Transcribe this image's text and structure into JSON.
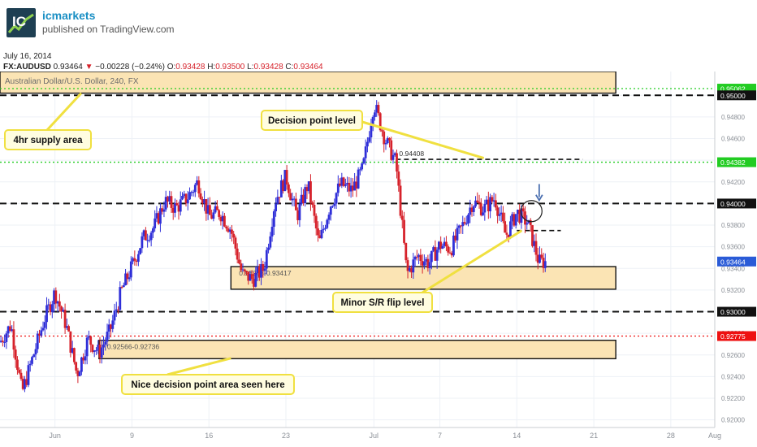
{
  "header": {
    "brand": "icmarkets",
    "published": "published on TradingView.com",
    "date": "July 16, 2014"
  },
  "ticker": {
    "symbol": "FX:AUDUSD",
    "price": "0.93464",
    "arrow": "▼",
    "change": "−0.00228 (−0.24%)",
    "o_label": "O:",
    "o": "0.93428",
    "h_label": "H:",
    "h": "0.93500",
    "l_label": "L:",
    "l": "0.93428",
    "c_label": "C:",
    "c": "0.93464"
  },
  "colors": {
    "up": "#2f2fd8",
    "down": "#d6222b",
    "zone_fill": "#fbe4b4",
    "annotation_fill": "#fffde0",
    "annotation_border": "#f0e040",
    "green_line": "#22cc22",
    "red_line": "#ee1111"
  },
  "chart_data": {
    "type": "candlestick",
    "instrument": "Australian Dollar/U.S. Dollar, 240, FX",
    "y_ticks": [
      0.92,
      0.922,
      0.924,
      0.926,
      0.928,
      0.93,
      0.932,
      0.934,
      0.936,
      0.938,
      0.94,
      0.942,
      0.944,
      0.946,
      0.948,
      0.95
    ],
    "y_tick_labels": [
      "0.92000",
      "0.92200",
      "0.92400",
      "0.92600",
      "0.92800",
      "0.93000",
      "0.93200",
      "0.93400",
      "0.93600",
      "0.93800",
      "0.94000",
      "0.94200",
      "0.94400",
      "0.94600",
      "0.94800",
      "0.95000"
    ],
    "x_ticks": [
      {
        "label": "Jun",
        "date": "2014-06-02"
      },
      {
        "label": "9",
        "date": "2014-06-09"
      },
      {
        "label": "16",
        "date": "2014-06-16"
      },
      {
        "label": "23",
        "date": "2014-06-23"
      },
      {
        "label": "Jul",
        "date": "2014-07-01"
      },
      {
        "label": "7",
        "date": "2014-07-07"
      },
      {
        "label": "14",
        "date": "2014-07-14"
      },
      {
        "label": "21",
        "date": "2014-07-21"
      },
      {
        "label": "28",
        "date": "2014-07-28"
      },
      {
        "label": "Aug",
        "date": "2014-08-01"
      }
    ],
    "x_range": [
      "2014-05-28",
      "2014-08-01"
    ],
    "y_range": [
      0.9193,
      0.9522
    ],
    "price_path": [
      [
        "2014-05-28",
        0.9272
      ],
      [
        "2014-05-29",
        0.9288
      ],
      [
        "2014-05-30",
        0.9225
      ],
      [
        "2014-06-01",
        0.9292
      ],
      [
        "2014-06-02",
        0.9318
      ],
      [
        "2014-06-03",
        0.9288
      ],
      [
        "2014-06-04",
        0.9242
      ],
      [
        "2014-06-05",
        0.9275
      ],
      [
        "2014-06-06",
        0.9262
      ],
      [
        "2014-06-07",
        0.9282
      ],
      [
        "2014-06-08",
        0.9318
      ],
      [
        "2014-06-09",
        0.9342
      ],
      [
        "2014-06-10",
        0.9368
      ],
      [
        "2014-06-11",
        0.9378
      ],
      [
        "2014-06-12",
        0.9402
      ],
      [
        "2014-06-13",
        0.9396
      ],
      [
        "2014-06-14",
        0.9405
      ],
      [
        "2014-06-15",
        0.942
      ],
      [
        "2014-06-16",
        0.9388
      ],
      [
        "2014-06-17",
        0.9392
      ],
      [
        "2014-06-18",
        0.9376
      ],
      [
        "2014-06-19",
        0.9335
      ],
      [
        "2014-06-20",
        0.933
      ],
      [
        "2014-06-21",
        0.934
      ],
      [
        "2014-06-22",
        0.9402
      ],
      [
        "2014-06-23",
        0.9425
      ],
      [
        "2014-06-24",
        0.9388
      ],
      [
        "2014-06-25",
        0.9418
      ],
      [
        "2014-06-26",
        0.9362
      ],
      [
        "2014-06-27",
        0.9398
      ],
      [
        "2014-06-28",
        0.9418
      ],
      [
        "2014-06-29",
        0.9412
      ],
      [
        "2014-06-30",
        0.9432
      ],
      [
        "2014-07-01",
        0.9493
      ],
      [
        "2014-07-02",
        0.946
      ],
      [
        "2014-07-03",
        0.9438
      ],
      [
        "2014-07-04",
        0.9335
      ],
      [
        "2014-07-05",
        0.9352
      ],
      [
        "2014-07-06",
        0.9345
      ],
      [
        "2014-07-07",
        0.9362
      ],
      [
        "2014-07-08",
        0.9358
      ],
      [
        "2014-07-09",
        0.9378
      ],
      [
        "2014-07-10",
        0.9402
      ],
      [
        "2014-07-11",
        0.9395
      ],
      [
        "2014-07-12",
        0.9405
      ],
      [
        "2014-07-13",
        0.937
      ],
      [
        "2014-07-14",
        0.9392
      ],
      [
        "2014-07-15",
        0.9382
      ],
      [
        "2014-07-16",
        0.9346
      ]
    ],
    "horizontal_levels": [
      {
        "price": 0.95062,
        "label": "0.95062",
        "style": "dotted",
        "color": "#22cc22"
      },
      {
        "price": 0.95,
        "label": "0.95000",
        "style": "dashed",
        "color": "#111111"
      },
      {
        "price": 0.94382,
        "label": "0.94382",
        "style": "dotted",
        "color": "#22cc22"
      },
      {
        "price": 0.94,
        "label": "0.94000",
        "style": "dashed",
        "color": "#111111"
      },
      {
        "price": 0.93,
        "label": "0.93000",
        "style": "dashed",
        "color": "#111111"
      },
      {
        "price": 0.92775,
        "label": "0.92775",
        "style": "dotted",
        "color": "#ee1111"
      }
    ],
    "current_price": {
      "price": 0.93464,
      "label": "0.93464"
    },
    "zones": [
      {
        "label": "0.93208-0.93417",
        "from": 0.93208,
        "to": 0.93417,
        "start": "2014-06-18",
        "end": "2014-07-23"
      },
      {
        "label": "0.92566-0.92736",
        "from": 0.92566,
        "to": 0.92736,
        "start": "2014-06-06",
        "end": "2014-07-23"
      },
      {
        "label": "",
        "from": 0.9502,
        "to": 0.9522,
        "start": "2014-05-28",
        "end": "2014-07-23"
      }
    ],
    "segments": [
      {
        "label": "0.94408",
        "price": 0.94408,
        "start": "2014-07-03",
        "end": "2014-07-20"
      },
      {
        "label": "",
        "price": 0.9375,
        "start": "2014-07-14",
        "end": "2014-07-18"
      }
    ],
    "annotations": [
      {
        "text": "4hr supply area"
      },
      {
        "text": "Decision point level"
      },
      {
        "text": "Minor S/R flip level"
      },
      {
        "text": "Nice decision point area seen here"
      }
    ]
  }
}
